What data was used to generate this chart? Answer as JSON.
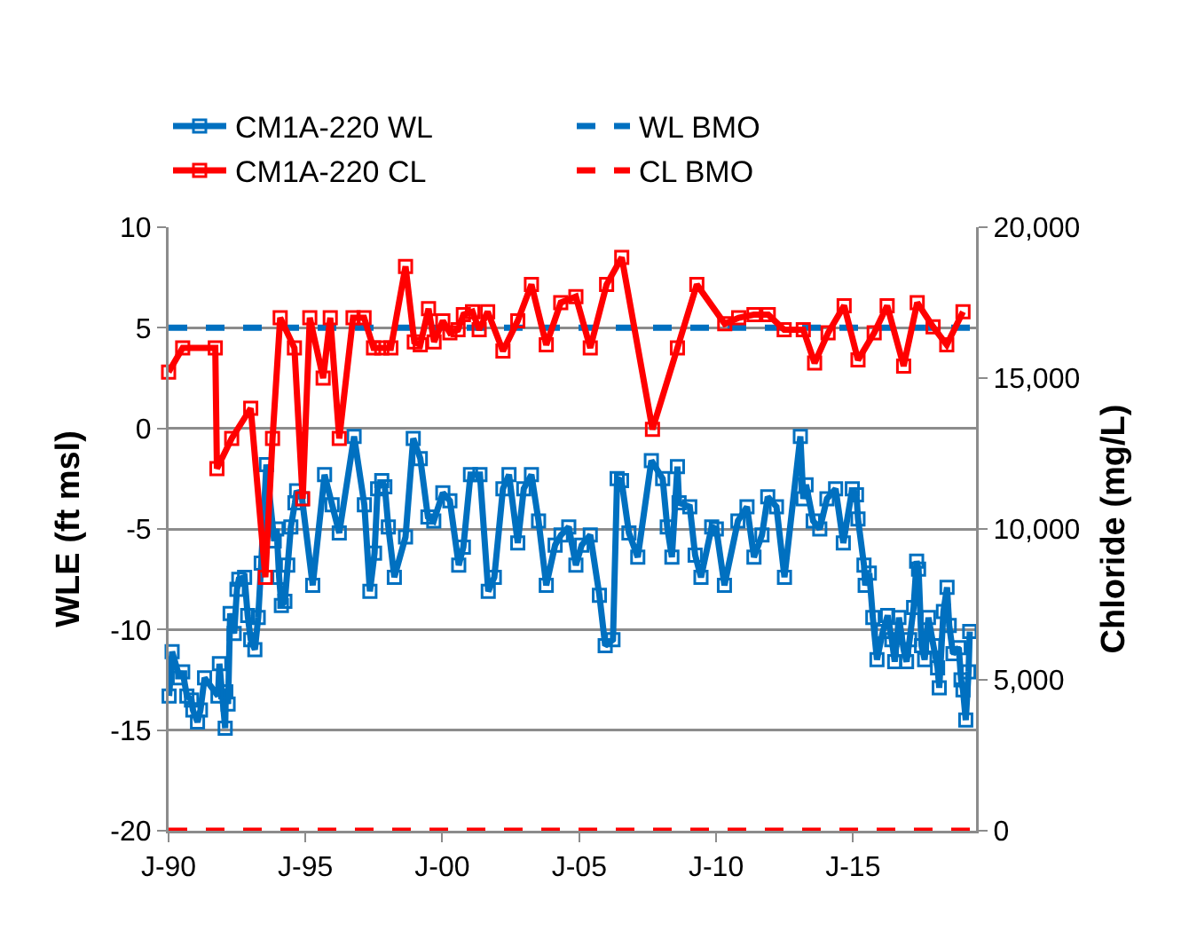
{
  "chart_data": {
    "type": "line",
    "ylabel": "WLE (ft msl)",
    "y2label": "Chloride (mg/L)",
    "xlim": [
      "1990-01-01",
      "2019-07-01"
    ],
    "xticks": [
      {
        "value": "1990-01-01",
        "label": "J-90"
      },
      {
        "value": "1995-01-01",
        "label": "J-95"
      },
      {
        "value": "2000-01-01",
        "label": "J-00"
      },
      {
        "value": "2005-01-01",
        "label": "J-05"
      },
      {
        "value": "2010-01-01",
        "label": "J-10"
      },
      {
        "value": "2015-01-01",
        "label": "J-15"
      }
    ],
    "ylim": [
      -20,
      10
    ],
    "yticks": [
      -20,
      -15,
      -10,
      -5,
      0,
      5,
      10
    ],
    "y2lim": [
      0,
      20000
    ],
    "y2ticks": [
      0,
      {
        "value": 5000,
        "label": "5,000"
      },
      {
        "value": 10000,
        "label": "10,000"
      },
      {
        "value": 15000,
        "label": "15,000"
      },
      {
        "value": 20000,
        "label": "20,000"
      }
    ],
    "grid": "y",
    "legend": "top",
    "marker": "square",
    "line_style": "solid",
    "series": [
      {
        "name": "CM1A-220 WL",
        "color": "#0070c0",
        "x": [
          "1990-01-08",
          "1990-02-17",
          "1990-05-28",
          "1990-07-08",
          "1990-09-02",
          "1990-11-03",
          "1990-11-21",
          "1991-01-22",
          "1991-03-02",
          "1991-04-26",
          "1991-10-22",
          "1991-11-10",
          "1992-01-26",
          "1992-02-03",
          "1992-03-05",
          "1992-04-01",
          "1992-05-25",
          "1992-07-01",
          "1992-07-26",
          "1992-10-11",
          "1992-11-21",
          "1993-01-01",
          "1993-02-25",
          "1993-04-11",
          "1993-05-21",
          "1993-07-29",
          "1993-11-10",
          "1993-12-13",
          "1994-01-15",
          "1994-02-14",
          "1994-04-01",
          "1994-05-10",
          "1994-06-20",
          "1994-08-14",
          "1994-09-05",
          "1994-11-17",
          "1995-04-08",
          "1995-09-13",
          "1995-12-23",
          "1996-03-27",
          "1996-10-11",
          "1997-02-25",
          "1997-05-10",
          "1997-07-11",
          "1997-08-21",
          "1997-10-15",
          "1997-11-25",
          "1998-01-11",
          "1998-04-01",
          "1998-08-28",
          "1998-12-09",
          "1999-03-13",
          "1999-06-23",
          "1999-09-09",
          "2000-01-08",
          "2000-04-11",
          "2000-08-07",
          "2000-10-08",
          "2001-01-11",
          "2001-05-17",
          "2001-09-05",
          "2001-11-25",
          "2002-03-20",
          "2002-06-09",
          "2002-10-04",
          "2002-12-23",
          "2003-04-04",
          "2003-07-08",
          "2003-10-19",
          "2004-02-14",
          "2004-05-03",
          "2004-08-14",
          "2004-11-17",
          "2005-02-03",
          "2005-05-28",
          "2005-09-27",
          "2005-12-13",
          "2006-03-27",
          "2006-05-21",
          "2006-07-19",
          "2006-10-26",
          "2007-02-21",
          "2007-08-21",
          "2008-01-19",
          "2008-03-20",
          "2008-05-21",
          "2008-08-03",
          "2008-08-25",
          "2009-01-15",
          "2009-03-27",
          "2009-06-13",
          "2009-11-03",
          "2010-01-04",
          "2010-04-22",
          "2010-10-19",
          "2011-02-17",
          "2011-05-21",
          "2011-09-05",
          "2011-11-21",
          "2012-03-16",
          "2012-07-01",
          "2013-01-29",
          "2013-03-09",
          "2013-04-15",
          "2013-07-19",
          "2013-10-15",
          "2014-01-19",
          "2014-05-14",
          "2014-08-25",
          "2014-12-23",
          "2015-02-17",
          "2015-03-09",
          "2015-05-28",
          "2015-06-13",
          "2015-08-07",
          "2015-09-23",
          "2015-11-17",
          "2016-02-03",
          "2016-04-08",
          "2016-06-02",
          "2016-07-11",
          "2016-09-05",
          "2016-11-07",
          "2016-12-16",
          "2017-01-26",
          "2017-03-20",
          "2017-04-29",
          "2017-05-25",
          "2017-07-04",
          "2017-08-14",
          "2017-10-04",
          "2017-12-09",
          "2018-02-03",
          "2018-02-25",
          "2018-04-22",
          "2018-06-09",
          "2018-07-08",
          "2018-08-28",
          "2018-11-13",
          "2018-12-13",
          "2019-01-08",
          "2019-02-14",
          "2019-03-23",
          "2019-04-08"
        ],
        "values": [
          -13.3,
          -11.1,
          -12.4,
          -12.1,
          -13.3,
          -13.5,
          -14.0,
          -14.6,
          -14.0,
          -12.4,
          -13.3,
          -11.7,
          -14.9,
          -13.1,
          -13.7,
          -9.2,
          -10.2,
          -8.0,
          -7.5,
          -7.4,
          -9.3,
          -10.5,
          -11.0,
          -9.4,
          -6.7,
          -1.8,
          -5.6,
          -5.0,
          -7.4,
          -8.8,
          -8.6,
          -6.8,
          -4.9,
          -3.7,
          -3.1,
          -3.5,
          -7.8,
          -2.3,
          -3.8,
          -5.2,
          -0.4,
          -3.8,
          -8.1,
          -6.2,
          -3.0,
          -2.6,
          -2.9,
          -4.9,
          -7.4,
          -5.4,
          -0.5,
          -1.5,
          -4.4,
          -4.6,
          -3.2,
          -3.6,
          -6.8,
          -5.9,
          -2.3,
          -2.3,
          -8.1,
          -7.4,
          -3.0,
          -2.3,
          -5.7,
          -3.0,
          -2.3,
          -4.6,
          -7.8,
          -5.8,
          -5.3,
          -4.9,
          -6.8,
          -5.8,
          -5.3,
          -8.3,
          -10.8,
          -10.5,
          -2.5,
          -2.6,
          -5.2,
          -6.4,
          -1.6,
          -2.5,
          -4.9,
          -6.4,
          -1.9,
          -3.7,
          -3.9,
          -6.3,
          -7.4,
          -4.9,
          -5.0,
          -7.8,
          -4.6,
          -3.9,
          -6.4,
          -5.3,
          -3.4,
          -3.9,
          -7.4,
          -0.4,
          -3.5,
          -2.8,
          -4.6,
          -5.0,
          -3.5,
          -3.0,
          -5.7,
          -3.0,
          -3.3,
          -4.5,
          -6.8,
          -7.8,
          -7.2,
          -9.4,
          -11.5,
          -10.1,
          -9.3,
          -10.5,
          -11.6,
          -9.4,
          -11.0,
          -11.6,
          -10.5,
          -8.9,
          -6.6,
          -7.0,
          -10.8,
          -11.5,
          -9.4,
          -10.8,
          -11.9,
          -12.9,
          -9.1,
          -7.9,
          -9.8,
          -11.2,
          -10.9,
          -12.5,
          -13.0,
          -14.5,
          -12.1,
          -10.1
        ]
      },
      {
        "name": "CM1A-220 CL",
        "color": "#ff0000",
        "axis": "y2",
        "x": [
          "1990-01-01",
          "1990-07-08",
          "1991-09-16",
          "1991-10-08",
          "1992-04-22",
          "1993-01-01",
          "1993-07-15",
          "1993-10-19",
          "1994-01-29",
          "1994-08-07",
          "1994-11-25",
          "1995-02-28",
          "1995-08-25",
          "1995-11-28",
          "1996-03-27",
          "1996-09-27",
          "1997-02-21",
          "1997-06-27",
          "1997-10-15",
          "1998-02-14",
          "1998-08-28",
          "1998-12-23",
          "1999-03-13",
          "1999-07-01",
          "1999-09-13",
          "2000-01-08",
          "2000-04-11",
          "2000-07-29",
          "2000-10-08",
          "2001-02-07",
          "2001-05-07",
          "2001-08-28",
          "2002-03-20",
          "2002-10-04",
          "2003-04-04",
          "2003-10-19",
          "2004-04-29",
          "2004-11-17",
          "2005-05-28",
          "2006-01-01",
          "2006-07-22",
          "2007-09-05",
          "2008-08-03",
          "2009-04-19",
          "2010-04-26",
          "2010-10-29",
          "2011-05-21",
          "2011-11-28",
          "2012-06-27",
          "2013-03-09",
          "2013-08-07",
          "2014-02-03",
          "2014-09-05",
          "2015-03-09",
          "2015-10-11",
          "2016-04-01",
          "2016-11-07",
          "2017-05-07",
          "2017-12-05",
          "2018-06-05",
          "2019-01-08"
        ],
        "values": [
          15200,
          16000,
          16000,
          12000,
          13000,
          14000,
          8400,
          13000,
          17000,
          16000,
          11000,
          17000,
          15000,
          17000,
          13000,
          17000,
          17000,
          16000,
          16000,
          16000,
          18700,
          16200,
          16100,
          17300,
          16200,
          16900,
          16500,
          16600,
          17100,
          17200,
          16600,
          17200,
          15900,
          16900,
          18100,
          16100,
          17500,
          17700,
          16000,
          18100,
          19000,
          13300,
          16000,
          18100,
          16800,
          17000,
          17100,
          17100,
          16600,
          16600,
          15500,
          16500,
          17400,
          15600,
          16500,
          17400,
          15400,
          17500,
          16700,
          16100,
          17200
        ]
      }
    ],
    "ref_lines": [
      {
        "axis": "y",
        "value": 5,
        "label": "WL BMO",
        "color": "#0070c0",
        "line_style": "dashed"
      },
      {
        "axis": "y2",
        "value": 0,
        "label": "CL BMO",
        "color": "#ff0000",
        "line_style": "dashed"
      }
    ]
  }
}
